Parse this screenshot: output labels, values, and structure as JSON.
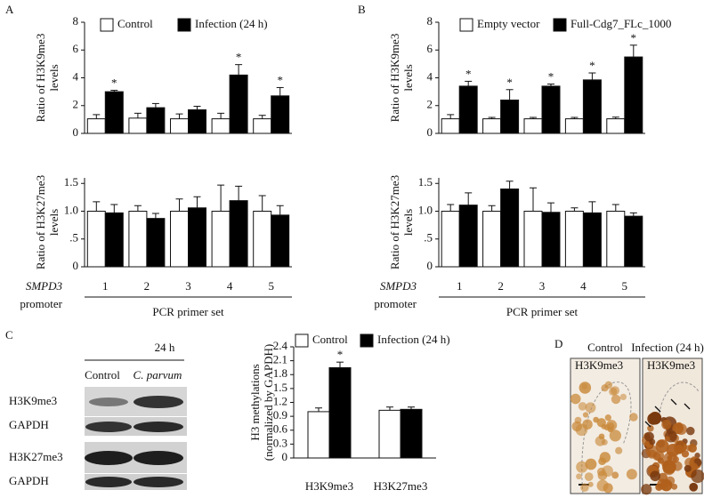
{
  "panels": {
    "a": "A",
    "b": "B",
    "c": "C",
    "d": "D"
  },
  "chart_data": [
    {
      "type": "bar",
      "ylim": [
        0,
        8
      ],
      "yticks": [
        0,
        2,
        4,
        6,
        8
      ],
      "ylabel": [
        "Ratio of  H3K9me3",
        "levels"
      ],
      "series": [
        {
          "name": "Control",
          "color": "#ffffff",
          "values": [
            1.05,
            1.1,
            1.05,
            1.05,
            1.05
          ],
          "errors": [
            0.3,
            0.35,
            0.35,
            0.4,
            0.25
          ],
          "markers": [
            null,
            null,
            null,
            null,
            null
          ]
        },
        {
          "name": "Infection (24 h)",
          "color": "#000000",
          "values": [
            3.0,
            1.85,
            1.7,
            4.2,
            2.7
          ],
          "errors": [
            0.1,
            0.3,
            0.25,
            0.75,
            0.6
          ],
          "markers": [
            "*",
            null,
            null,
            "*",
            "*"
          ]
        }
      ]
    },
    {
      "type": "bar",
      "ylim": [
        0,
        1.6
      ],
      "yticks": [
        0,
        {
          "value": 0.5,
          "label": ".5"
        },
        {
          "value": 1,
          "label": "1.0"
        },
        1.5
      ],
      "ylabel": [
        "Ratio of H3K27me3",
        "levels"
      ],
      "categories": [
        "1",
        "2",
        "3",
        "4",
        "5"
      ],
      "xlabel": "PCR primer set",
      "xlabel_left": [
        "SMPD3",
        "promoter"
      ],
      "series": [
        {
          "color": "#ffffff",
          "values": [
            1.0,
            1.0,
            1.0,
            1.0,
            1.0
          ],
          "errors": [
            0.17,
            0.1,
            0.22,
            0.47,
            0.28
          ]
        },
        {
          "color": "#000000",
          "values": [
            0.97,
            0.87,
            1.06,
            1.19,
            0.93
          ],
          "errors": [
            0.15,
            0.09,
            0.2,
            0.26,
            0.17
          ]
        }
      ]
    },
    {
      "type": "bar",
      "ylim": [
        0,
        8
      ],
      "yticks": [
        0,
        2,
        4,
        6,
        8
      ],
      "ylabel": [
        "Ratio of  H3K9me3",
        "levels"
      ],
      "series": [
        {
          "name": "Empty vector",
          "color": "#ffffff",
          "values": [
            1.05,
            1.05,
            1.05,
            1.05,
            1.05
          ],
          "errors": [
            0.3,
            0.1,
            0.1,
            0.1,
            0.12
          ],
          "markers": [
            null,
            null,
            null,
            null,
            null
          ]
        },
        {
          "name": "Full-Cdg7_FLc_1000",
          "color": "#000000",
          "values": [
            3.4,
            2.4,
            3.4,
            3.85,
            5.5
          ],
          "errors": [
            0.35,
            0.75,
            0.15,
            0.5,
            0.85
          ],
          "markers": [
            "*",
            "*",
            "*",
            "*",
            "*"
          ]
        }
      ]
    },
    {
      "type": "bar",
      "ylim": [
        0,
        1.6
      ],
      "yticks": [
        0,
        {
          "value": 0.5,
          "label": ".5"
        },
        {
          "value": 1,
          "label": "1.0"
        },
        1.5
      ],
      "ylabel": [
        "Ratio of H3K27me3",
        "levels"
      ],
      "categories": [
        "1",
        "2",
        "3",
        "4",
        "5"
      ],
      "xlabel": "PCR primer set",
      "xlabel_left": [
        "SMPD3",
        "promoter"
      ],
      "series": [
        {
          "color": "#ffffff",
          "values": [
            1.0,
            1.0,
            1.0,
            1.0,
            1.0
          ],
          "errors": [
            0.12,
            0.1,
            0.42,
            0.06,
            0.12
          ]
        },
        {
          "color": "#000000",
          "values": [
            1.11,
            1.4,
            0.98,
            0.97,
            0.91
          ],
          "errors": [
            0.22,
            0.14,
            0.17,
            0.2,
            0.06
          ]
        }
      ]
    },
    {
      "type": "bar",
      "ylim": [
        0,
        2.4
      ],
      "yticks": [
        0,
        0.3,
        0.6,
        0.9,
        1.2,
        1.5,
        1.8,
        2.1,
        2.4
      ],
      "ylabel": [
        "H3 methylations",
        "(normalized by GAPDH)"
      ],
      "categories": [
        "H3K9me3",
        "H3K27me3"
      ],
      "series": [
        {
          "name": "Control",
          "color": "#ffffff",
          "values": [
            1.0,
            1.03
          ],
          "errors": [
            0.08,
            0.07
          ],
          "markers": [
            null,
            null
          ]
        },
        {
          "name": "Infection (24 h)",
          "color": "#000000",
          "values": [
            1.95,
            1.05
          ],
          "errors": [
            0.12,
            0.05
          ],
          "markers": [
            "*",
            null
          ]
        }
      ]
    }
  ],
  "blot": {
    "time": "24 h",
    "lanes": [
      "Control",
      "C. parvum"
    ],
    "rows": [
      "H3K9me3",
      "GAPDH",
      "H3K27me3",
      "GAPDH"
    ]
  },
  "micrographs": {
    "columns": [
      "Control",
      "Infection (24 h)"
    ],
    "stain": [
      "H3K9me3",
      "H3K9me3"
    ]
  }
}
